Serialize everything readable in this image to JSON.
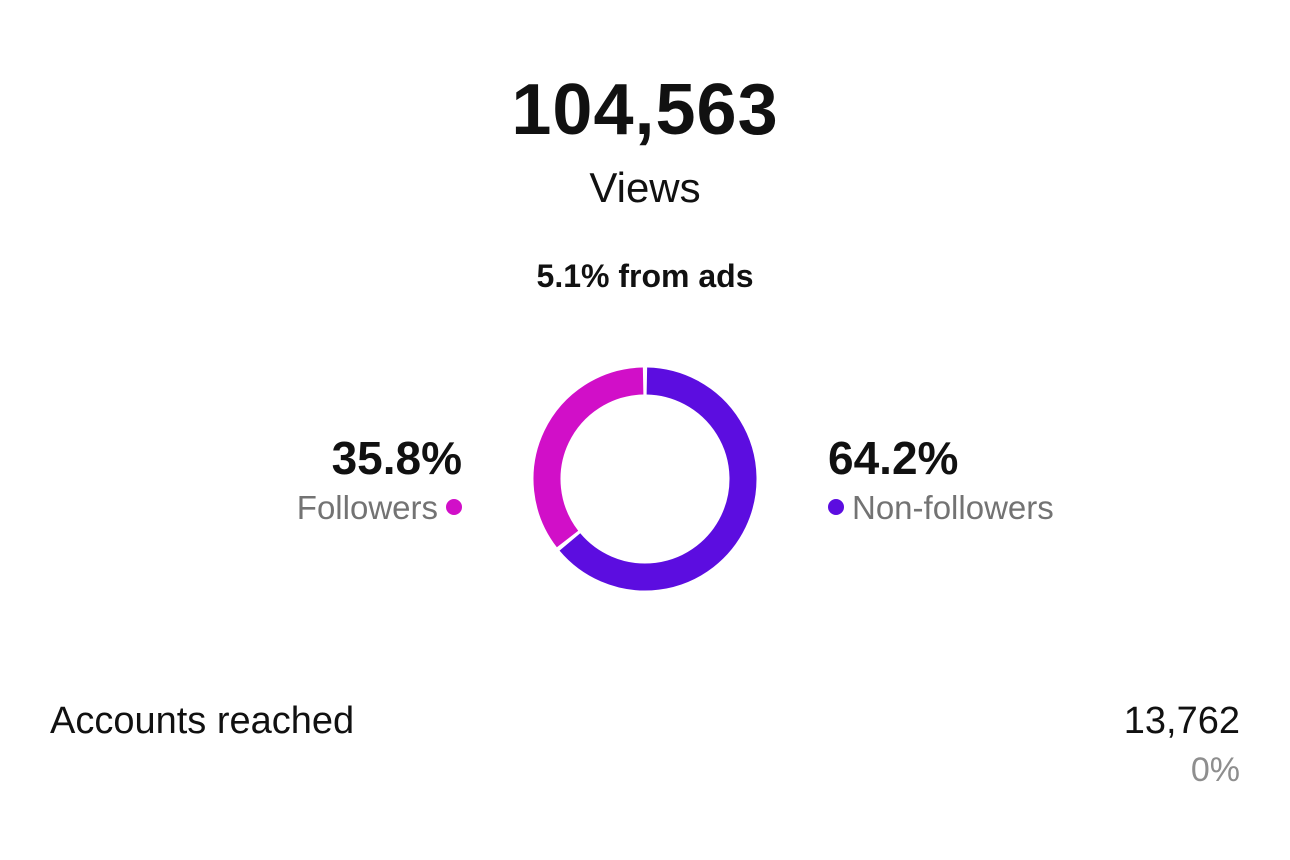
{
  "views": {
    "total": "104,563",
    "label": "Views",
    "ads_share": "5.1% from ads"
  },
  "chart_data": {
    "type": "pie",
    "variant": "donut",
    "categories": [
      "Followers",
      "Non-followers"
    ],
    "values": [
      35.8,
      64.2
    ],
    "value_labels": [
      "35.8%",
      "64.2%"
    ],
    "colors": [
      "#d10fc8",
      "#5c0de0"
    ],
    "unit": "%"
  },
  "legend": {
    "followers": {
      "pct": "35.8%",
      "label": "Followers",
      "color": "#d10fc8"
    },
    "non_followers": {
      "pct": "64.2%",
      "label": "Non-followers",
      "color": "#5c0de0"
    }
  },
  "accounts_reached": {
    "label": "Accounts reached",
    "value": "13,762",
    "change": "0%"
  }
}
